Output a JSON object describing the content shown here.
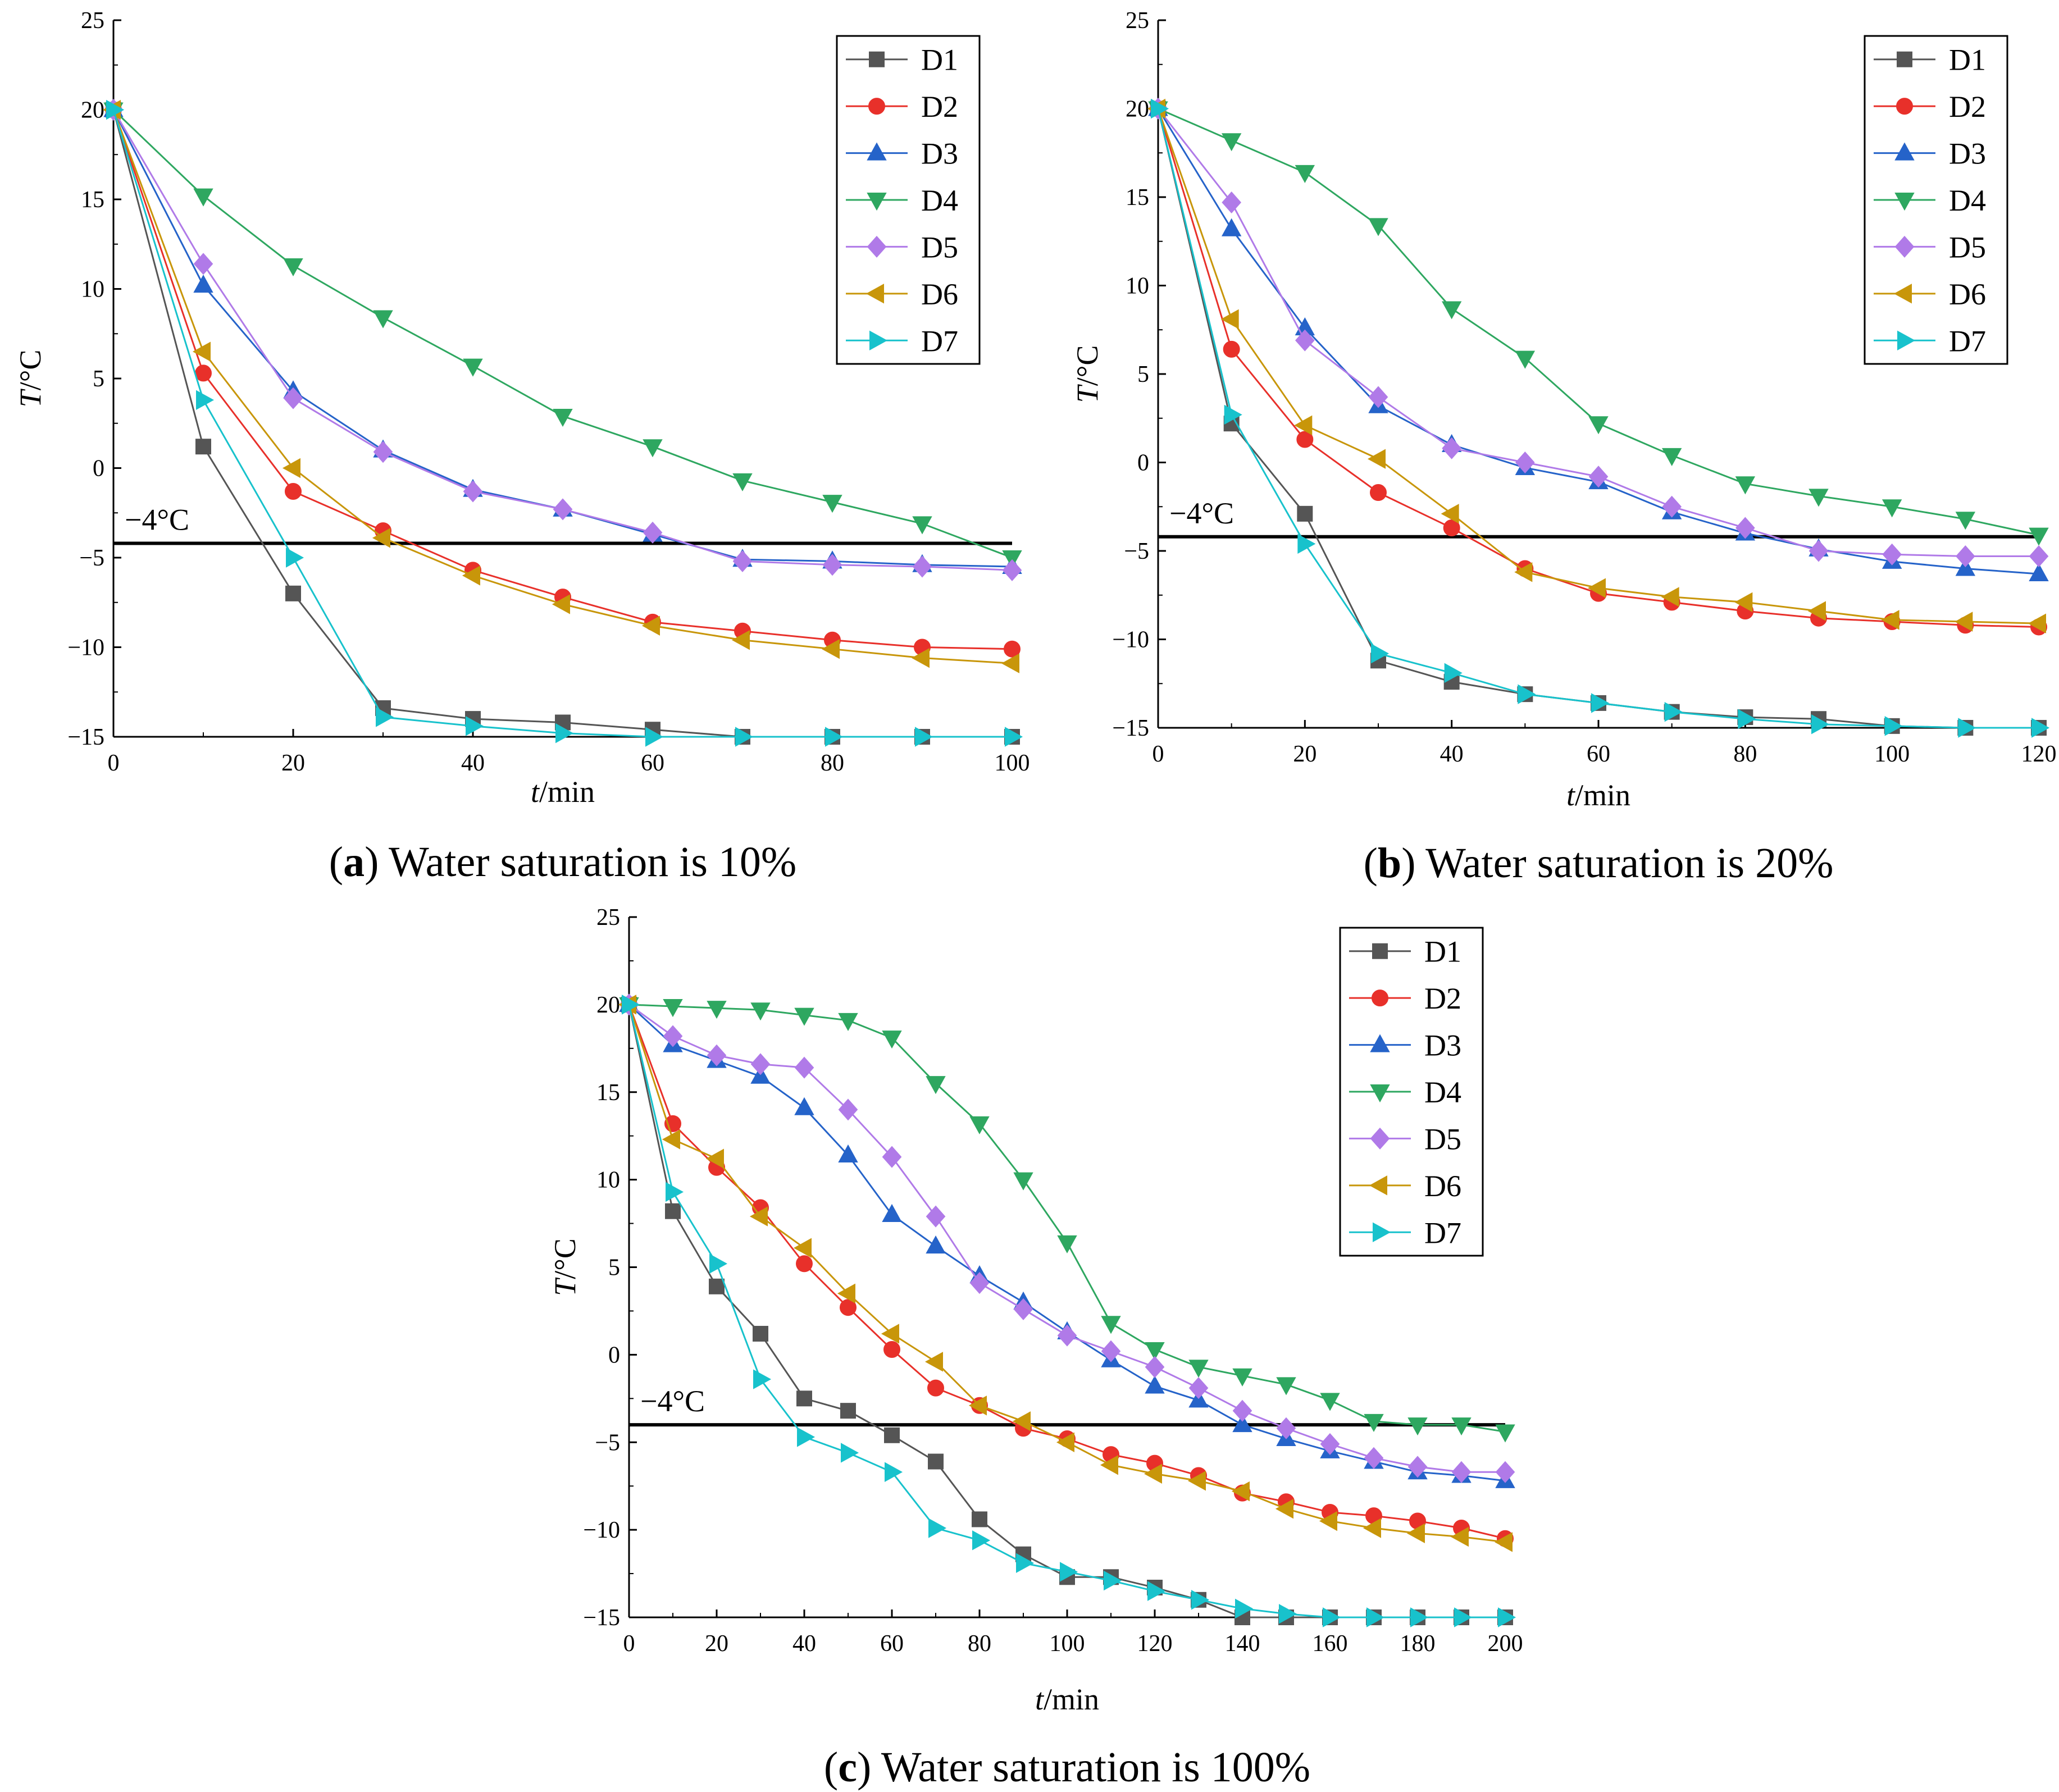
{
  "chart_data": [
    {
      "type": "line",
      "id": "a",
      "caption_letter": "a",
      "caption_text": "Water saturation is 10%",
      "ylabel_italic": "T",
      "ylabel_unit": "/°C",
      "xlabel_italic": "t",
      "xlabel_unit": "/min",
      "xlim": [
        0,
        100
      ],
      "ylim": [
        -15,
        25
      ],
      "xticks": [
        0,
        20,
        40,
        60,
        80,
        100
      ],
      "yticks": [
        -15,
        -10,
        -5,
        0,
        5,
        10,
        15,
        20,
        25
      ],
      "threshold": {
        "value": -4.2,
        "label": "−4°C"
      },
      "legend": "top-right",
      "x": [
        0,
        10,
        20,
        30,
        40,
        50,
        60,
        70,
        80,
        90,
        100
      ],
      "series": [
        {
          "name": "D1",
          "color": "#555555",
          "marker": "square",
          "values": [
            20,
            1.2,
            -7,
            -13.4,
            -14,
            -14.2,
            -14.6,
            -15,
            -15,
            -15,
            -15
          ]
        },
        {
          "name": "D2",
          "color": "#e8302a",
          "marker": "circle",
          "values": [
            20,
            5.3,
            -1.3,
            -3.5,
            -5.7,
            -7.2,
            -8.6,
            -9.1,
            -9.6,
            -10,
            -10.1
          ]
        },
        {
          "name": "D3",
          "color": "#2563c9",
          "marker": "triangle-up",
          "values": [
            20,
            10.2,
            4.3,
            1,
            -1.2,
            -2.3,
            -3.7,
            -5.1,
            -5.2,
            -5.4,
            -5.5
          ]
        },
        {
          "name": "D4",
          "color": "#2ea760",
          "marker": "triangle-down",
          "values": [
            20,
            15.2,
            11.3,
            8.4,
            5.7,
            2.9,
            1.2,
            -0.7,
            -1.9,
            -3.1,
            -5
          ]
        },
        {
          "name": "D5",
          "color": "#b07ae8",
          "marker": "diamond",
          "values": [
            20,
            11.4,
            3.9,
            0.9,
            -1.3,
            -2.3,
            -3.6,
            -5.2,
            -5.4,
            -5.5,
            -5.7
          ]
        },
        {
          "name": "D6",
          "color": "#c8960a",
          "marker": "triangle-left",
          "values": [
            20,
            6.5,
            0,
            -3.9,
            -6,
            -7.6,
            -8.8,
            -9.6,
            -10.1,
            -10.6,
            -10.9
          ]
        },
        {
          "name": "D7",
          "color": "#18c2cc",
          "marker": "triangle-right",
          "values": [
            20,
            3.8,
            -5,
            -13.9,
            -14.4,
            -14.8,
            -15,
            -15,
            -15,
            -15,
            -15
          ]
        }
      ]
    },
    {
      "type": "line",
      "id": "b",
      "caption_letter": "b",
      "caption_text": "Water saturation is 20%",
      "ylabel_italic": "T",
      "ylabel_unit": "/°C",
      "xlabel_italic": "t",
      "xlabel_unit": "/min",
      "xlim": [
        0,
        120
      ],
      "ylim": [
        -15,
        25
      ],
      "xticks": [
        0,
        20,
        40,
        60,
        80,
        100,
        120
      ],
      "yticks": [
        -15,
        -10,
        -5,
        0,
        5,
        10,
        15,
        20,
        25
      ],
      "threshold": {
        "value": -4.2,
        "label": "−4°C"
      },
      "legend": "top-right",
      "x": [
        0,
        10,
        20,
        30,
        40,
        50,
        60,
        70,
        80,
        90,
        100,
        110,
        120
      ],
      "series": [
        {
          "name": "D1",
          "color": "#555555",
          "marker": "square",
          "values": [
            20,
            2.2,
            -2.9,
            -11.2,
            -12.4,
            -13.1,
            -13.6,
            -14.1,
            -14.4,
            -14.5,
            -14.9,
            -15,
            -15
          ]
        },
        {
          "name": "D2",
          "color": "#e8302a",
          "marker": "circle",
          "values": [
            20,
            6.4,
            1.3,
            -1.7,
            -3.7,
            -6,
            -7.4,
            -7.9,
            -8.4,
            -8.8,
            -9,
            -9.2,
            -9.3
          ]
        },
        {
          "name": "D3",
          "color": "#2563c9",
          "marker": "triangle-up",
          "values": [
            20,
            13.2,
            7.6,
            3.2,
            1,
            -0.3,
            -1.1,
            -2.8,
            -4,
            -4.9,
            -5.6,
            -6,
            -6.3
          ]
        },
        {
          "name": "D4",
          "color": "#2ea760",
          "marker": "triangle-down",
          "values": [
            20,
            18.2,
            16.4,
            13.4,
            8.7,
            5.9,
            2.2,
            0.4,
            -1.2,
            -1.9,
            -2.5,
            -3.2,
            -4.1
          ]
        },
        {
          "name": "D5",
          "color": "#b07ae8",
          "marker": "diamond",
          "values": [
            20,
            14.7,
            6.9,
            3.7,
            0.8,
            0,
            -0.8,
            -2.5,
            -3.7,
            -5,
            -5.2,
            -5.3,
            -5.3
          ]
        },
        {
          "name": "D6",
          "color": "#c8960a",
          "marker": "triangle-left",
          "values": [
            20,
            8.1,
            2.1,
            0.2,
            -2.9,
            -6.2,
            -7.1,
            -7.6,
            -7.9,
            -8.4,
            -8.9,
            -9,
            -9.1
          ]
        },
        {
          "name": "D7",
          "color": "#18c2cc",
          "marker": "triangle-right",
          "values": [
            20,
            2.7,
            -4.6,
            -10.8,
            -11.9,
            -13.1,
            -13.6,
            -14.1,
            -14.5,
            -14.8,
            -14.9,
            -15,
            -15
          ]
        }
      ]
    },
    {
      "type": "line",
      "id": "c",
      "caption_letter": "c",
      "caption_text": "Water saturation is 100%",
      "ylabel_italic": "T",
      "ylabel_unit": "/°C",
      "xlabel_italic": "t",
      "xlabel_unit": "/min",
      "xlim": [
        0,
        200
      ],
      "ylim": [
        -15,
        25
      ],
      "xticks": [
        0,
        20,
        40,
        60,
        80,
        100,
        120,
        140,
        160,
        180,
        200
      ],
      "yticks": [
        -15,
        -10,
        -5,
        0,
        5,
        10,
        15,
        20,
        25
      ],
      "threshold": {
        "value": -4,
        "label": "−4°C"
      },
      "legend": "top-right",
      "x": [
        0,
        10,
        20,
        30,
        40,
        50,
        60,
        70,
        80,
        90,
        100,
        110,
        120,
        130,
        140,
        150,
        160,
        170,
        180,
        190,
        200
      ],
      "series": [
        {
          "name": "D1",
          "color": "#555555",
          "marker": "square",
          "values": [
            20,
            8.2,
            3.9,
            1.2,
            -2.5,
            -3.2,
            -4.6,
            -6.1,
            -9.4,
            -11.4,
            -12.7,
            -12.7,
            -13.3,
            -14,
            -15,
            -15,
            -15,
            -15,
            -15,
            -15,
            -15
          ]
        },
        {
          "name": "D2",
          "color": "#e8302a",
          "marker": "circle",
          "values": [
            20,
            13.2,
            10.7,
            8.4,
            5.2,
            2.7,
            0.3,
            -1.9,
            -2.9,
            -4.2,
            -4.8,
            -5.7,
            -6.2,
            -6.9,
            -7.9,
            -8.4,
            -9,
            -9.2,
            -9.5,
            -9.9,
            -10.5
          ]
        },
        {
          "name": "D3",
          "color": "#2563c9",
          "marker": "triangle-up",
          "values": [
            20,
            17.7,
            16.8,
            15.9,
            14.1,
            11.4,
            8,
            6.2,
            4.5,
            3,
            1.3,
            -0.3,
            -1.8,
            -2.6,
            -4,
            -4.8,
            -5.5,
            -6.1,
            -6.7,
            -6.9,
            -7.2
          ]
        },
        {
          "name": "D4",
          "color": "#2ea760",
          "marker": "triangle-down",
          "values": [
            20,
            19.9,
            19.8,
            19.7,
            19.4,
            19.1,
            18.1,
            15.5,
            13.2,
            10,
            6.4,
            1.8,
            0.3,
            -0.7,
            -1.2,
            -1.7,
            -2.6,
            -3.8,
            -4,
            -4,
            -4.4
          ]
        },
        {
          "name": "D5",
          "color": "#b07ae8",
          "marker": "diamond",
          "values": [
            20,
            18.2,
            17.1,
            16.6,
            16.4,
            14,
            11.3,
            7.9,
            4.1,
            2.6,
            1.1,
            0.2,
            -0.7,
            -1.9,
            -3.2,
            -4.2,
            -5.1,
            -5.9,
            -6.4,
            -6.7,
            -6.7
          ]
        },
        {
          "name": "D6",
          "color": "#c8960a",
          "marker": "triangle-left",
          "values": [
            20,
            12.3,
            11.2,
            7.9,
            6.1,
            3.5,
            1.2,
            -0.4,
            -2.9,
            -3.8,
            -5,
            -6.3,
            -6.8,
            -7.2,
            -7.8,
            -8.8,
            -9.5,
            -9.9,
            -10.2,
            -10.4,
            -10.7
          ]
        },
        {
          "name": "D7",
          "color": "#18c2cc",
          "marker": "triangle-right",
          "values": [
            20,
            9.3,
            5.2,
            -1.4,
            -4.7,
            -5.6,
            -6.7,
            -9.9,
            -10.6,
            -11.9,
            -12.4,
            -12.9,
            -13.5,
            -14,
            -14.5,
            -14.8,
            -15,
            -15,
            -15,
            -15,
            -15
          ]
        }
      ]
    }
  ]
}
